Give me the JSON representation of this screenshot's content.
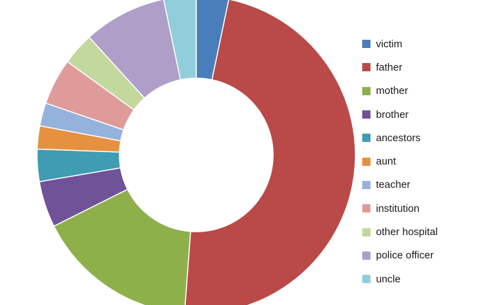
{
  "chart_data": {
    "type": "pie",
    "variant": "donut",
    "title": "",
    "legend_position": "right",
    "categories": [
      "victim",
      "father",
      "mother",
      "brother",
      "ancestors",
      "aunt",
      "teacher",
      "institution",
      "other hospital",
      "police officer",
      "uncle"
    ],
    "values": [
      3.5,
      51,
      17.5,
      5,
      3.5,
      2.5,
      2.5,
      5,
      3.5,
      9,
      3.5
    ],
    "unit": "percent (estimated)",
    "colors": [
      "#4a7ebb",
      "#b94a48",
      "#8db04a",
      "#6f5298",
      "#3f9cb3",
      "#e6913f",
      "#95b2dd",
      "#df9b9a",
      "#c3d89c",
      "#ae9ec8",
      "#92cddc"
    ],
    "slice_order": "clockwise from top"
  }
}
